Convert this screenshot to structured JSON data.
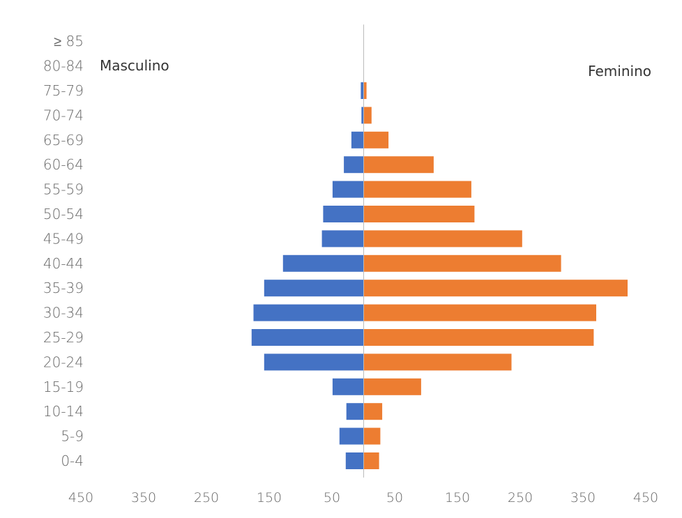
{
  "chart_data": {
    "type": "bar",
    "orientation": "horizontal-population-pyramid",
    "categories": [
      "0-4",
      "5-9",
      "10-14",
      "15-19",
      "20-24",
      "25-29",
      "30-34",
      "35-39",
      "40-44",
      "45-49",
      "50-54",
      "55-59",
      "60-64",
      "65-69",
      "70-74",
      "75-79",
      "80-84",
      "≥ 85"
    ],
    "series": [
      {
        "name": "Masculino",
        "color": "#4472C4",
        "values": [
          28,
          38,
          27,
          49,
          158,
          178,
          175,
          158,
          128,
          66,
          64,
          49,
          31,
          19,
          3,
          4,
          0,
          0
        ]
      },
      {
        "name": "Feminino",
        "color": "#ED7D31",
        "values": [
          24,
          26,
          29,
          91,
          235,
          366,
          370,
          420,
          314,
          252,
          176,
          171,
          111,
          39,
          12,
          4,
          0,
          0
        ]
      }
    ],
    "xticks": [
      "450",
      "350",
      "250",
      "150",
      "50",
      "50",
      "150",
      "250",
      "350",
      "450"
    ],
    "xlim": [
      -450,
      450
    ],
    "grid": false,
    "legend": "in-plot labels top-left and top-right"
  }
}
